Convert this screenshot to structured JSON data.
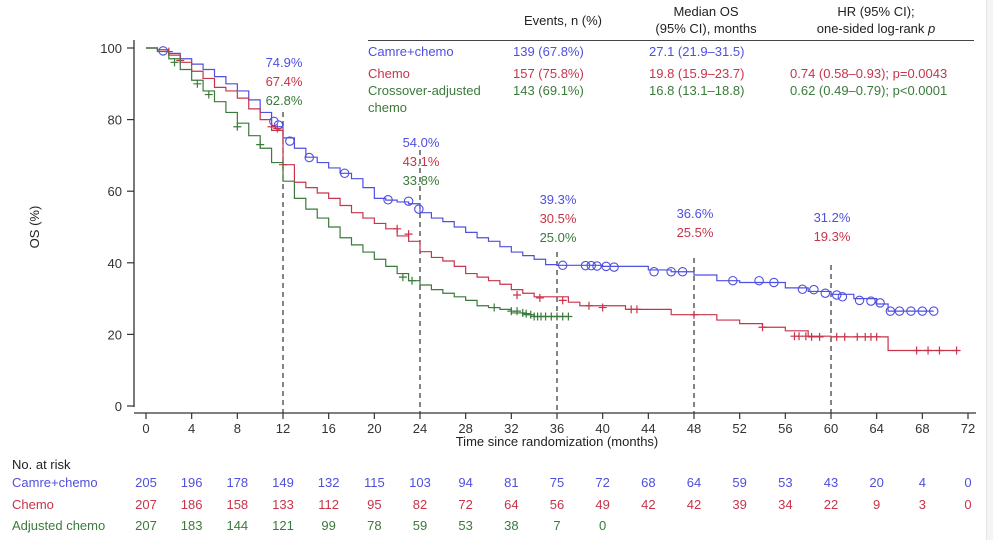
{
  "colors": {
    "camre": "#4f4fe0",
    "chemo": "#c8344a",
    "adjusted": "#3a7a3a",
    "axis": "#333333",
    "refline": "#333333"
  },
  "chart_data": {
    "type": "line",
    "subtype": "kaplan-meier",
    "title": "",
    "xlabel": "Time since randomization (months)",
    "ylabel": "OS (%)",
    "xlim": [
      0,
      72
    ],
    "ylim": [
      0,
      100
    ],
    "x_ticks": [
      0,
      4,
      8,
      12,
      16,
      20,
      24,
      28,
      32,
      36,
      40,
      44,
      48,
      52,
      56,
      60,
      64,
      68,
      72
    ],
    "y_ticks": [
      0,
      20,
      40,
      60,
      80,
      100
    ],
    "grid": false,
    "reference_lines_x": [
      12,
      24,
      36,
      48,
      60
    ],
    "series": [
      {
        "name": "Camre+chemo",
        "key": "camre",
        "censor_marker": "circle",
        "points": [
          [
            0,
            100
          ],
          [
            1,
            99.5
          ],
          [
            2,
            98.5
          ],
          [
            3,
            97
          ],
          [
            4,
            95.5
          ],
          [
            5,
            94
          ],
          [
            6,
            92
          ],
          [
            7,
            90
          ],
          [
            8,
            88
          ],
          [
            9,
            85.5
          ],
          [
            10,
            82
          ],
          [
            11,
            78
          ],
          [
            12,
            74.9
          ],
          [
            13,
            72
          ],
          [
            14,
            69.5
          ],
          [
            15,
            68
          ],
          [
            16,
            66.5
          ],
          [
            17,
            65
          ],
          [
            18,
            63.5
          ],
          [
            19,
            61
          ],
          [
            20,
            58
          ],
          [
            21,
            57.5
          ],
          [
            22,
            57
          ],
          [
            23,
            56.5
          ],
          [
            24,
            54.0
          ],
          [
            25,
            52.5
          ],
          [
            26,
            51.5
          ],
          [
            27,
            50
          ],
          [
            28,
            48.5
          ],
          [
            29,
            47
          ],
          [
            30,
            46
          ],
          [
            31,
            44.5
          ],
          [
            32,
            43
          ],
          [
            33,
            42
          ],
          [
            34,
            41
          ],
          [
            35,
            39.5
          ],
          [
            36,
            39.3
          ],
          [
            40,
            39.0
          ],
          [
            44,
            38.0
          ],
          [
            46,
            37.5
          ],
          [
            48,
            36.6
          ],
          [
            50,
            35
          ],
          [
            52,
            34.5
          ],
          [
            56,
            33
          ],
          [
            58,
            32
          ],
          [
            60,
            31.2
          ],
          [
            62,
            30
          ],
          [
            64,
            28.5
          ],
          [
            65,
            26.5
          ],
          [
            69,
            26.5
          ]
        ],
        "censors": [
          [
            1.5,
            99.2
          ],
          [
            11.2,
            79.5
          ],
          [
            11.6,
            78.5
          ],
          [
            12.6,
            74
          ],
          [
            14.3,
            69.4
          ],
          [
            17.4,
            65
          ],
          [
            21.2,
            57.6
          ],
          [
            23,
            57.2
          ],
          [
            23.9,
            55
          ],
          [
            36.5,
            39.3
          ],
          [
            38.5,
            39.2
          ],
          [
            39,
            39.2
          ],
          [
            39.5,
            39.1
          ],
          [
            40.3,
            39
          ],
          [
            41,
            38.8
          ],
          [
            44.5,
            37.5
          ],
          [
            46,
            37.5
          ],
          [
            47,
            37.5
          ],
          [
            51.4,
            35
          ],
          [
            53.7,
            35
          ],
          [
            55,
            34.5
          ],
          [
            57.5,
            32.6
          ],
          [
            58.5,
            32.5
          ],
          [
            59.5,
            31.5
          ],
          [
            60.5,
            31
          ],
          [
            61,
            30.5
          ],
          [
            62.5,
            29.5
          ],
          [
            63.5,
            29.3
          ],
          [
            64.3,
            28.8
          ],
          [
            65.2,
            26.5
          ],
          [
            66,
            26.5
          ],
          [
            67,
            26.5
          ],
          [
            68,
            26.5
          ],
          [
            69,
            26.5
          ]
        ],
        "landmarks": {
          "12": "74.9%",
          "24": "54.0%",
          "36": "39.3%",
          "48": "36.6%",
          "60": "31.2%"
        }
      },
      {
        "name": "Chemo",
        "key": "chemo",
        "censor_marker": "plus",
        "points": [
          [
            0,
            100
          ],
          [
            1,
            99.5
          ],
          [
            2,
            98
          ],
          [
            3,
            96
          ],
          [
            4,
            93.5
          ],
          [
            5,
            91.5
          ],
          [
            6,
            89
          ],
          [
            7,
            88
          ],
          [
            8,
            86
          ],
          [
            9,
            83
          ],
          [
            10,
            80
          ],
          [
            11,
            77
          ],
          [
            12,
            67.4
          ],
          [
            13,
            62.5
          ],
          [
            14,
            61
          ],
          [
            15,
            59.5
          ],
          [
            16,
            58
          ],
          [
            17,
            56
          ],
          [
            18,
            54
          ],
          [
            19,
            52.5
          ],
          [
            20,
            51
          ],
          [
            21,
            49.5
          ],
          [
            22,
            47.5
          ],
          [
            23,
            46
          ],
          [
            24,
            43.1
          ],
          [
            25,
            41.5
          ],
          [
            26,
            40.5
          ],
          [
            27,
            39
          ],
          [
            28,
            37
          ],
          [
            29,
            36
          ],
          [
            30,
            35
          ],
          [
            31,
            34
          ],
          [
            32,
            32.5
          ],
          [
            33,
            31.5
          ],
          [
            34,
            30.5
          ],
          [
            36,
            30.5
          ],
          [
            37,
            29
          ],
          [
            38,
            28
          ],
          [
            42,
            27
          ],
          [
            46,
            25.5
          ],
          [
            48,
            25.5
          ],
          [
            50,
            24
          ],
          [
            52,
            23
          ],
          [
            54,
            22
          ],
          [
            56,
            21
          ],
          [
            58,
            19.5
          ],
          [
            60,
            19.3
          ],
          [
            64,
            19.3
          ],
          [
            65,
            15.5
          ],
          [
            71,
            15.5
          ]
        ],
        "censors": [
          [
            2,
            99
          ],
          [
            3,
            96.5
          ],
          [
            11,
            78
          ],
          [
            11.5,
            77.5
          ],
          [
            12,
            67.4
          ],
          [
            22,
            49.5
          ],
          [
            23,
            48
          ],
          [
            32.5,
            31
          ],
          [
            34.5,
            30.2
          ],
          [
            36.5,
            29.5
          ],
          [
            38.8,
            28
          ],
          [
            40,
            27.5
          ],
          [
            42.5,
            27
          ],
          [
            43,
            27
          ],
          [
            48,
            25.5
          ],
          [
            54,
            22
          ],
          [
            56.8,
            19.5
          ],
          [
            57.2,
            19.5
          ],
          [
            57.8,
            19.5
          ],
          [
            58.3,
            19.3
          ],
          [
            59,
            19.3
          ],
          [
            60.5,
            19.3
          ],
          [
            61.2,
            19.3
          ],
          [
            62.3,
            19.3
          ],
          [
            63,
            19.3
          ],
          [
            63.5,
            19.3
          ],
          [
            64,
            19.3
          ],
          [
            67.5,
            15.5
          ],
          [
            68.5,
            15.5
          ],
          [
            69.5,
            15.5
          ],
          [
            71,
            15.5
          ]
        ],
        "landmarks": {
          "12": "67.4%",
          "24": "43.1%",
          "36": "30.5%",
          "48": "25.5%",
          "60": "19.3%"
        }
      },
      {
        "name": "Crossover-adjusted chemo",
        "key": "adjusted",
        "censor_marker": "plus",
        "points": [
          [
            0,
            100
          ],
          [
            1,
            99
          ],
          [
            2,
            97
          ],
          [
            3,
            94
          ],
          [
            4,
            91
          ],
          [
            5,
            88
          ],
          [
            6,
            85
          ],
          [
            7,
            82
          ],
          [
            8,
            79
          ],
          [
            9,
            75.5
          ],
          [
            10,
            72
          ],
          [
            11,
            68
          ],
          [
            12,
            62.8
          ],
          [
            13,
            58
          ],
          [
            14,
            55
          ],
          [
            15,
            52.5
          ],
          [
            16,
            50
          ],
          [
            17,
            47
          ],
          [
            18,
            45
          ],
          [
            19,
            43
          ],
          [
            20,
            41
          ],
          [
            21,
            39
          ],
          [
            22,
            37
          ],
          [
            23,
            35
          ],
          [
            24,
            33.8
          ],
          [
            25,
            32.5
          ],
          [
            26,
            31.5
          ],
          [
            27,
            30.5
          ],
          [
            28,
            29.5
          ],
          [
            29,
            28
          ],
          [
            30,
            27.5
          ],
          [
            31,
            27
          ],
          [
            32,
            26
          ],
          [
            33,
            25.5
          ],
          [
            34,
            25
          ],
          [
            37,
            25
          ]
        ],
        "censors": [
          [
            2.5,
            96
          ],
          [
            4.5,
            90
          ],
          [
            5.5,
            87
          ],
          [
            8,
            78
          ],
          [
            10,
            73
          ],
          [
            22.5,
            36
          ],
          [
            23.3,
            35
          ],
          [
            30.5,
            27.5
          ],
          [
            32,
            26.5
          ],
          [
            32.5,
            26.5
          ],
          [
            33,
            26
          ],
          [
            33.3,
            25.8
          ],
          [
            33.7,
            25.5
          ],
          [
            34,
            25
          ],
          [
            34.3,
            25
          ],
          [
            34.6,
            25
          ],
          [
            35,
            25
          ],
          [
            35.5,
            25
          ],
          [
            36,
            25
          ],
          [
            36.5,
            25
          ],
          [
            37,
            25
          ]
        ],
        "landmarks": {
          "12": "62.8%",
          "24": "33.8%",
          "36": "25.0%"
        }
      }
    ]
  },
  "legend_table": {
    "headers": {
      "events": "Events, n (%)",
      "median_line1": "Median OS",
      "median_line2": "(95% CI), months",
      "hr_line1": "HR (95% CI);",
      "hr_line2": "one-sided log-rank ",
      "hr_p": "p"
    },
    "rows": [
      {
        "key": "camre",
        "label": "Camre+chemo",
        "events": "139 (67.8%)",
        "median": "27.1 (21.9–31.5)",
        "hr": ""
      },
      {
        "key": "chemo",
        "label": "Chemo",
        "events": "157 (75.8%)",
        "median": "19.8 (15.9–23.7)",
        "hr": "0.74 (0.58–0.93); p=0.0043"
      },
      {
        "key": "adjusted",
        "label_line1": "Crossover-adjusted",
        "label_line2": "chemo",
        "events": "143 (69.1%)",
        "median": "16.8 (13.1–18.8)",
        "hr": "0.62 (0.49–0.79); p<0.0001"
      }
    ]
  },
  "at_risk": {
    "title": "No. at risk",
    "times": [
      0,
      4,
      8,
      12,
      16,
      20,
      24,
      28,
      32,
      36,
      40,
      44,
      48,
      52,
      56,
      60,
      64,
      68,
      72
    ],
    "rows": [
      {
        "key": "camre",
        "label": "Camre+chemo",
        "values": [
          "205",
          "196",
          "178",
          "149",
          "132",
          "115",
          "103",
          "94",
          "81",
          "75",
          "72",
          "68",
          "64",
          "59",
          "53",
          "43",
          "20",
          "4",
          "0"
        ]
      },
      {
        "key": "chemo",
        "label": "Chemo",
        "values": [
          "207",
          "186",
          "158",
          "133",
          "112",
          "95",
          "82",
          "72",
          "64",
          "56",
          "49",
          "42",
          "42",
          "39",
          "34",
          "22",
          "9",
          "3",
          "0"
        ]
      },
      {
        "key": "adjusted",
        "label": "Adjusted chemo",
        "values": [
          "207",
          "183",
          "144",
          "121",
          "99",
          "78",
          "59",
          "53",
          "38",
          "7",
          "0"
        ]
      }
    ]
  }
}
